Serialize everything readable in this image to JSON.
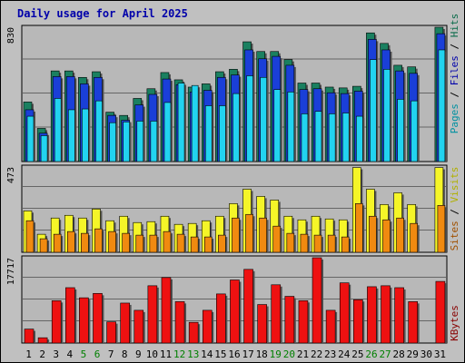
{
  "title": "Daily usage for April 2025",
  "colors": {
    "hits_top": "#0a6b4a",
    "hits": "#1a8060",
    "files": "#1a3fd8",
    "files_side": "#0000aa",
    "pages": "#22d3f0",
    "pages_side": "#0090a0",
    "visits": "#f5f528",
    "visits_side": "#b0b000",
    "sites": "#f08a10",
    "sites_side": "#a05000",
    "kbytes": "#ee1111",
    "kbytes_side": "#880000",
    "weekend_label": "#008000"
  },
  "labels": {
    "top": [
      "Pages",
      "Files",
      "Hits"
    ],
    "mid": [
      "Sites",
      "Visits"
    ],
    "bottom": [
      "KBytes"
    ],
    "sep": " / "
  },
  "max_labels": {
    "top": "830",
    "mid": "473",
    "bottom": "17717"
  },
  "chart_data": [
    {
      "type": "bar",
      "title": "Daily usage for April 2025",
      "x": [
        "1",
        "2",
        "3",
        "4",
        "5",
        "6",
        "7",
        "8",
        "9",
        "10",
        "11",
        "12",
        "13",
        "14",
        "15",
        "16",
        "17",
        "18",
        "19",
        "20",
        "21",
        "22",
        "23",
        "24",
        "25",
        "26",
        "27",
        "28",
        "29",
        "30",
        "31"
      ],
      "weekend_days": [
        "5",
        "6",
        "12",
        "13",
        "19",
        "20",
        "26",
        "27"
      ],
      "ylim": [
        0,
        830
      ],
      "series": [
        {
          "name": "Hits",
          "values": [
            368,
            205,
            560,
            560,
            520,
            555,
            305,
            285,
            390,
            450,
            550,
            505,
            460,
            480,
            555,
            570,
            740,
            680,
            680,
            630,
            485,
            485,
            460,
            455,
            465,
            795,
            730,
            595,
            585,
            0,
            830
          ]
        },
        {
          "name": "Files",
          "values": [
            320,
            175,
            525,
            525,
            480,
            520,
            285,
            255,
            350,
            415,
            510,
            475,
            430,
            440,
            520,
            535,
            690,
            635,
            650,
            595,
            445,
            450,
            425,
            420,
            435,
            755,
            690,
            560,
            545,
            0,
            790
          ]
        },
        {
          "name": "Pages",
          "values": [
            280,
            160,
            390,
            320,
            325,
            375,
            240,
            245,
            250,
            250,
            365,
            485,
            470,
            345,
            345,
            420,
            530,
            520,
            445,
            430,
            295,
            310,
            295,
            300,
            280,
            630,
            570,
            385,
            375,
            0,
            690
          ]
        }
      ]
    },
    {
      "type": "bar",
      "x": [
        "1",
        "2",
        "3",
        "4",
        "5",
        "6",
        "7",
        "8",
        "9",
        "10",
        "11",
        "12",
        "13",
        "14",
        "15",
        "16",
        "17",
        "18",
        "19",
        "20",
        "21",
        "22",
        "23",
        "24",
        "25",
        "26",
        "27",
        "28",
        "29",
        "30",
        "31"
      ],
      "ylim": [
        0,
        473
      ],
      "series": [
        {
          "name": "Visits",
          "values": [
            230,
            100,
            190,
            205,
            190,
            240,
            175,
            200,
            165,
            170,
            200,
            155,
            160,
            175,
            200,
            270,
            350,
            310,
            290,
            200,
            180,
            200,
            185,
            180,
            470,
            350,
            265,
            330,
            265,
            0,
            470
          ]
        },
        {
          "name": "Sites",
          "values": [
            175,
            75,
            100,
            115,
            105,
            130,
            115,
            105,
            95,
            95,
            115,
            100,
            85,
            85,
            95,
            190,
            210,
            190,
            145,
            105,
            100,
            95,
            95,
            85,
            270,
            200,
            180,
            190,
            160,
            0,
            260
          ]
        }
      ]
    },
    {
      "type": "bar",
      "x": [
        "1",
        "2",
        "3",
        "4",
        "5",
        "6",
        "7",
        "8",
        "9",
        "10",
        "11",
        "12",
        "13",
        "14",
        "15",
        "16",
        "17",
        "18",
        "19",
        "20",
        "21",
        "22",
        "23",
        "24",
        "25",
        "26",
        "27",
        "28",
        "29",
        "30",
        "31"
      ],
      "ylim": [
        0,
        17717
      ],
      "series": [
        {
          "name": "KBytes",
          "values": [
            2900,
            1100,
            8800,
            11500,
            9400,
            10300,
            4400,
            8300,
            6800,
            11900,
            13600,
            8600,
            4300,
            6800,
            10200,
            13100,
            15300,
            8000,
            12100,
            9700,
            8800,
            17717,
            6800,
            12500,
            9000,
            11700,
            11900,
            11500,
            8600,
            0,
            12800
          ]
        }
      ]
    }
  ]
}
